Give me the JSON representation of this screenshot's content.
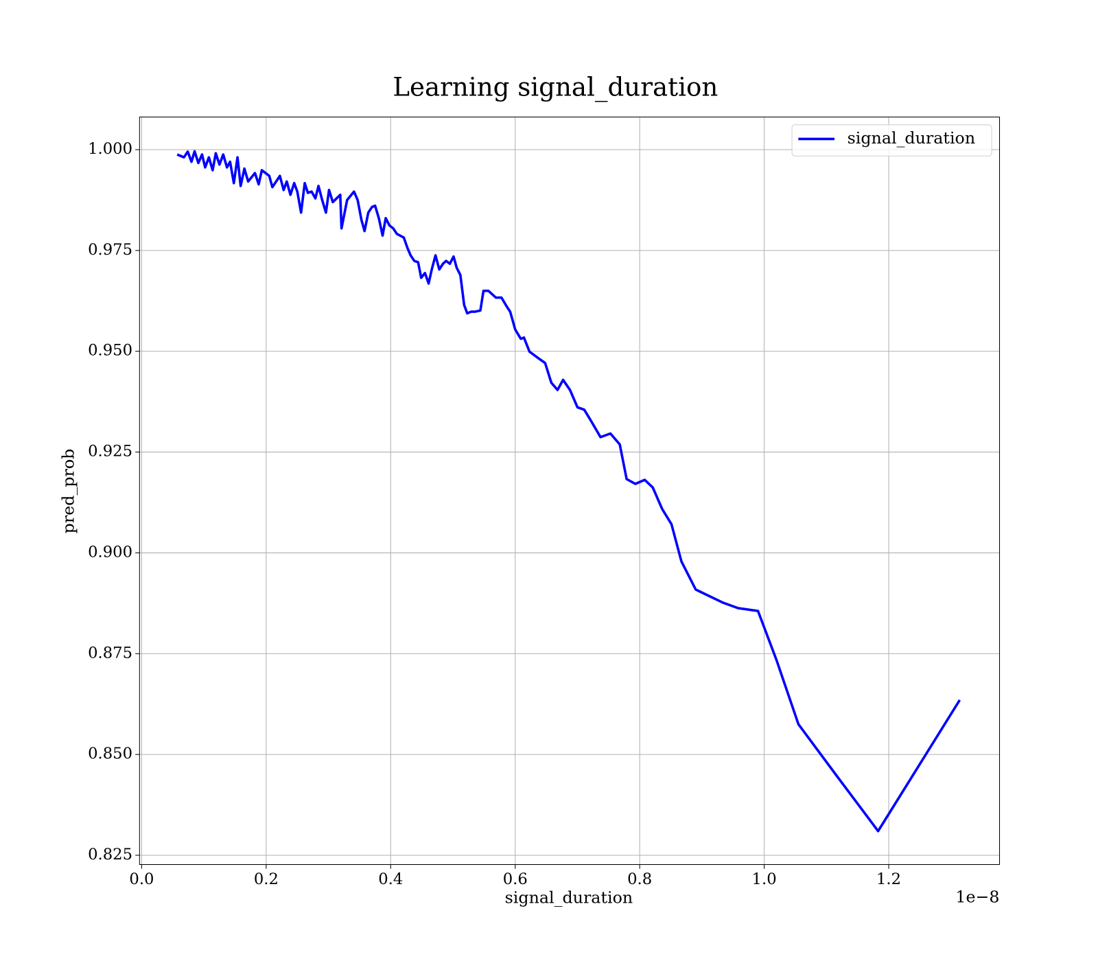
{
  "chart_data": {
    "type": "line",
    "title": "Learning signal_duration",
    "x_label": "signal_duration",
    "y_label": "pred_prob",
    "x_offset_label": "1e−8",
    "grid": true,
    "legend": "upper right",
    "xlim": [
      -0.0034,
      1.378
    ],
    "ylim": [
      0.8227,
      1.0081
    ],
    "xticks": [
      {
        "value": 0,
        "label": "0.0"
      },
      0.2,
      0.4,
      0.6,
      0.8,
      {
        "value": 1,
        "label": "1.0"
      },
      1.2
    ],
    "yticks": [
      0.825,
      {
        "value": 0.85,
        "label": "0.850"
      },
      0.875,
      {
        "value": 0.9,
        "label": "0.900"
      },
      0.925,
      {
        "value": 0.95,
        "label": "0.950"
      },
      0.975,
      {
        "value": 1,
        "label": "1.000"
      }
    ],
    "x": [
      0.057,
      0.068,
      0.074,
      0.08,
      0.085,
      0.091,
      0.097,
      0.102,
      0.108,
      0.114,
      0.119,
      0.125,
      0.131,
      0.137,
      0.142,
      0.148,
      0.154,
      0.159,
      0.165,
      0.171,
      0.182,
      0.188,
      0.193,
      0.205,
      0.21,
      0.222,
      0.228,
      0.233,
      0.239,
      0.245,
      0.25,
      0.256,
      0.262,
      0.267,
      0.273,
      0.279,
      0.284,
      0.29,
      0.296,
      0.301,
      0.307,
      0.319,
      0.321,
      0.33,
      0.341,
      0.347,
      0.353,
      0.358,
      0.364,
      0.37,
      0.375,
      0.381,
      0.387,
      0.392,
      0.398,
      0.404,
      0.41,
      0.421,
      0.427,
      0.432,
      0.438,
      0.444,
      0.449,
      0.455,
      0.461,
      0.466,
      0.472,
      0.478,
      0.484,
      0.489,
      0.495,
      0.501,
      0.506,
      0.512,
      0.518,
      0.523,
      0.529,
      0.535,
      0.544,
      0.549,
      0.557,
      0.569,
      0.578,
      0.586,
      0.592,
      0.6,
      0.609,
      0.614,
      0.623,
      0.637,
      0.648,
      0.658,
      0.668,
      0.677,
      0.688,
      0.7,
      0.711,
      0.722,
      0.737,
      0.753,
      0.768,
      0.779,
      0.793,
      0.808,
      0.821,
      0.836,
      0.851,
      0.867,
      0.89,
      0.933,
      0.958,
      0.99,
      1.02,
      1.055,
      1.115,
      1.183,
      1.314
    ],
    "series": [
      {
        "name": "signal_duration",
        "color": "#0000ff",
        "values": [
          0.9988,
          0.9981,
          0.9995,
          0.997,
          0.9996,
          0.9967,
          0.9988,
          0.9956,
          0.9981,
          0.9949,
          0.9991,
          0.9963,
          0.9988,
          0.9956,
          0.997,
          0.9917,
          0.9981,
          0.991,
          0.9953,
          0.9921,
          0.9942,
          0.9914,
          0.9949,
          0.9935,
          0.9907,
          0.9935,
          0.99,
          0.9921,
          0.9888,
          0.9917,
          0.9896,
          0.9844,
          0.9917,
          0.9893,
          0.9896,
          0.9879,
          0.991,
          0.9875,
          0.9844,
          0.99,
          0.987,
          0.9888,
          0.9805,
          0.9875,
          0.9896,
          0.9875,
          0.9826,
          0.9798,
          0.9844,
          0.9858,
          0.9861,
          0.983,
          0.9787,
          0.983,
          0.9812,
          0.9805,
          0.9791,
          0.9782,
          0.9756,
          0.9738,
          0.9724,
          0.9721,
          0.9682,
          0.9694,
          0.9668,
          0.9703,
          0.9738,
          0.9703,
          0.9717,
          0.9724,
          0.9717,
          0.9735,
          0.9707,
          0.9689,
          0.9615,
          0.9594,
          0.9598,
          0.9598,
          0.9601,
          0.965,
          0.965,
          0.9633,
          0.9633,
          0.9612,
          0.9598,
          0.9554,
          0.9531,
          0.9534,
          0.9499,
          0.9483,
          0.9471,
          0.9422,
          0.9404,
          0.9429,
          0.9404,
          0.9361,
          0.9355,
          0.9327,
          0.9287,
          0.9296,
          0.9269,
          0.9183,
          0.9171,
          0.9181,
          0.9162,
          0.9109,
          0.9071,
          0.8979,
          0.8909,
          0.8877,
          0.8863,
          0.8856,
          0.8733,
          0.8575,
          0.845,
          0.831,
          0.8635
        ]
      }
    ]
  }
}
